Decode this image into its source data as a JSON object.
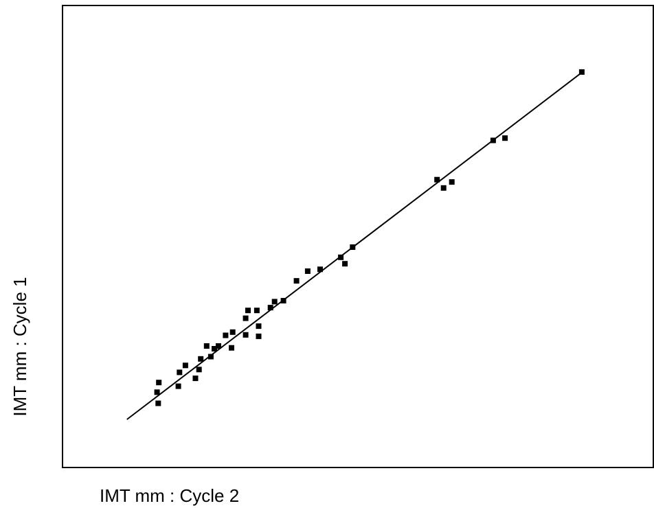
{
  "chart_data": {
    "type": "scatter",
    "title": "",
    "xlabel": "IMT mm : Cycle 2",
    "ylabel": "IMT mm : Cycle 1",
    "xlim": [
      0,
      100
    ],
    "ylim": [
      0,
      100
    ],
    "grid": false,
    "legend": "none",
    "ticks_shown": false,
    "points": [
      [
        16.2,
        13.9
      ],
      [
        16.0,
        16.3
      ],
      [
        16.3,
        18.4
      ],
      [
        19.6,
        17.6
      ],
      [
        19.8,
        20.6
      ],
      [
        20.8,
        22.1
      ],
      [
        22.5,
        19.3
      ],
      [
        23.1,
        21.2
      ],
      [
        23.4,
        23.5
      ],
      [
        24.4,
        26.3
      ],
      [
        25.1,
        24.0
      ],
      [
        25.7,
        25.7
      ],
      [
        26.4,
        26.3
      ],
      [
        27.6,
        28.6
      ],
      [
        28.6,
        25.9
      ],
      [
        28.8,
        29.3
      ],
      [
        31.0,
        32.3
      ],
      [
        31.4,
        34.0
      ],
      [
        31.0,
        28.7
      ],
      [
        32.9,
        34.0
      ],
      [
        33.2,
        30.6
      ],
      [
        33.2,
        28.4
      ],
      [
        35.2,
        34.6
      ],
      [
        35.9,
        35.9
      ],
      [
        37.4,
        36.1
      ],
      [
        39.6,
        40.4
      ],
      [
        41.5,
        42.5
      ],
      [
        43.6,
        42.9
      ],
      [
        47.1,
        45.5
      ],
      [
        47.8,
        44.1
      ],
      [
        49.1,
        47.7
      ],
      [
        63.4,
        62.3
      ],
      [
        64.5,
        60.5
      ],
      [
        65.9,
        61.8
      ],
      [
        72.9,
        70.8
      ],
      [
        74.9,
        71.3
      ],
      [
        87.9,
        85.6
      ]
    ],
    "fit_line": {
      "x": [
        10.9,
        87.6
      ],
      "y": [
        10.4,
        85.2
      ]
    },
    "colors": {
      "points": "#000000",
      "line": "#000000",
      "frame": "#000000"
    }
  }
}
